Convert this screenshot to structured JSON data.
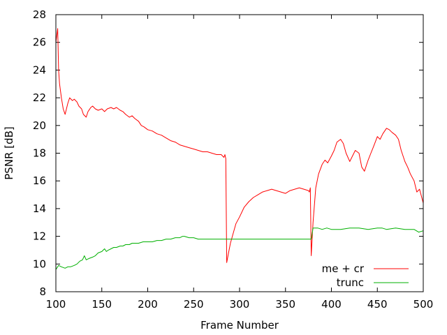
{
  "chart_data": {
    "type": "line",
    "title": "",
    "xlabel": "Frame Number",
    "ylabel": "PSNR [dB]",
    "xlim": [
      100,
      500
    ],
    "ylim": [
      8,
      28
    ],
    "x_ticks": [
      100,
      150,
      200,
      250,
      300,
      350,
      400,
      450,
      500
    ],
    "y_ticks": [
      8,
      10,
      12,
      14,
      16,
      18,
      20,
      22,
      24,
      26,
      28
    ],
    "grid": false,
    "legend": "bottom-right",
    "series": [
      {
        "name": "me + cr",
        "color": "#ff0000",
        "x": [
          100,
          102,
          103,
          104,
          106,
          108,
          110,
          113,
          115,
          118,
          120,
          123,
          125,
          128,
          130,
          133,
          135,
          138,
          140,
          143,
          146,
          150,
          153,
          156,
          160,
          163,
          166,
          170,
          173,
          176,
          180,
          183,
          186,
          190,
          193,
          196,
          200,
          205,
          210,
          215,
          220,
          225,
          230,
          235,
          240,
          245,
          250,
          255,
          260,
          265,
          270,
          275,
          280,
          283,
          284,
          285,
          286,
          288,
          290,
          293,
          296,
          300,
          305,
          310,
          315,
          320,
          325,
          330,
          335,
          340,
          345,
          350,
          355,
          360,
          365,
          370,
          375,
          376,
          377,
          378,
          380,
          383,
          386,
          390,
          393,
          396,
          400,
          403,
          406,
          410,
          413,
          416,
          420,
          423,
          426,
          430,
          433,
          436,
          440,
          443,
          446,
          450,
          453,
          456,
          460,
          463,
          466,
          470,
          473,
          476,
          480,
          483,
          486,
          490,
          493,
          496,
          500
        ],
        "y": [
          26.0,
          27.0,
          24.0,
          23.0,
          22.0,
          21.2,
          20.8,
          21.6,
          22.0,
          21.8,
          21.9,
          21.7,
          21.4,
          21.2,
          20.8,
          20.6,
          21.0,
          21.3,
          21.4,
          21.2,
          21.1,
          21.2,
          21.0,
          21.2,
          21.3,
          21.2,
          21.3,
          21.1,
          21.0,
          20.8,
          20.6,
          20.7,
          20.5,
          20.3,
          20.0,
          19.9,
          19.7,
          19.6,
          19.4,
          19.3,
          19.1,
          18.9,
          18.8,
          18.6,
          18.5,
          18.4,
          18.3,
          18.2,
          18.1,
          18.1,
          18.0,
          17.9,
          17.9,
          17.7,
          17.9,
          17.6,
          10.1,
          10.8,
          11.5,
          12.2,
          12.9,
          13.4,
          14.1,
          14.5,
          14.8,
          15.0,
          15.2,
          15.3,
          15.4,
          15.3,
          15.2,
          15.1,
          15.3,
          15.4,
          15.5,
          15.4,
          15.3,
          15.2,
          15.5,
          10.6,
          13.0,
          15.5,
          16.5,
          17.2,
          17.5,
          17.3,
          17.8,
          18.2,
          18.8,
          19.0,
          18.7,
          18.0,
          17.4,
          17.8,
          18.2,
          18.0,
          17.0,
          16.7,
          17.5,
          18.0,
          18.5,
          19.2,
          19.0,
          19.4,
          19.8,
          19.7,
          19.5,
          19.3,
          19.0,
          18.2,
          17.4,
          17.0,
          16.5,
          16.0,
          15.2,
          15.4,
          14.4
        ]
      },
      {
        "name": "trunc",
        "color": "#00b000",
        "x": [
          100,
          103,
          106,
          110,
          113,
          116,
          120,
          123,
          126,
          129,
          131,
          133,
          136,
          140,
          143,
          146,
          150,
          153,
          155,
          157,
          160,
          163,
          166,
          170,
          173,
          176,
          180,
          183,
          186,
          190,
          195,
          200,
          205,
          210,
          215,
          220,
          225,
          230,
          235,
          238,
          240,
          245,
          250,
          255,
          260,
          265,
          270,
          275,
          280,
          285,
          290,
          300,
          310,
          320,
          330,
          340,
          350,
          360,
          370,
          378,
          380,
          385,
          390,
          395,
          400,
          410,
          420,
          430,
          440,
          450,
          455,
          460,
          470,
          480,
          490,
          495,
          500
        ],
        "y": [
          9.6,
          9.9,
          9.8,
          9.7,
          9.8,
          9.8,
          9.9,
          10.0,
          10.2,
          10.3,
          10.6,
          10.3,
          10.4,
          10.5,
          10.6,
          10.8,
          10.9,
          11.1,
          10.9,
          11.0,
          11.1,
          11.2,
          11.2,
          11.3,
          11.3,
          11.4,
          11.4,
          11.5,
          11.5,
          11.5,
          11.6,
          11.6,
          11.6,
          11.7,
          11.7,
          11.8,
          11.8,
          11.9,
          11.9,
          12.0,
          12.0,
          11.9,
          11.9,
          11.8,
          11.8,
          11.8,
          11.8,
          11.8,
          11.8,
          11.8,
          11.8,
          11.8,
          11.8,
          11.8,
          11.8,
          11.8,
          11.8,
          11.8,
          11.8,
          11.8,
          12.6,
          12.6,
          12.5,
          12.6,
          12.5,
          12.5,
          12.6,
          12.6,
          12.5,
          12.6,
          12.6,
          12.5,
          12.6,
          12.5,
          12.5,
          12.3,
          12.4
        ]
      }
    ]
  }
}
